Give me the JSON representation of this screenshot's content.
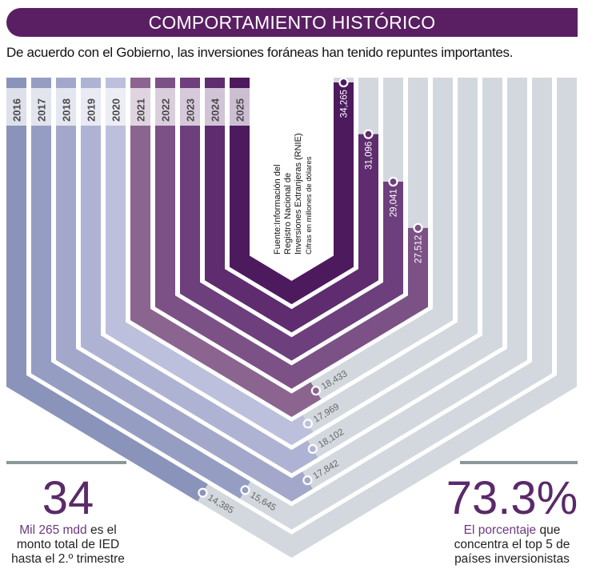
{
  "header": {
    "title": "COMPORTAMIENTO HISTÓRICO",
    "subtitle": "De acuerdo con el Gobierno, las inversiones foráneas han tenido repuntes importantes."
  },
  "source": {
    "lines": [
      "Fuente:Información del",
      "Registro Nacional de",
      "Inversiones Extranjeras (RNIE)"
    ],
    "units": "Cifras en millones de dólares"
  },
  "chart_data": {
    "type": "bar",
    "style": "nested chevron bands, fill length proportional to value",
    "categories": [
      "2016",
      "2017",
      "2018",
      "2019",
      "2020",
      "2021",
      "2022",
      "2023",
      "2024",
      "2025"
    ],
    "values": [
      14385,
      15645,
      17842,
      18102,
      17969,
      18433,
      27512,
      29041,
      31096,
      34265
    ],
    "value_labels": [
      "14,385",
      "15,645",
      "17,842",
      "18,102",
      "17,969",
      "18,433",
      "27,512",
      "29,041",
      "31,096",
      "34,265"
    ],
    "colors": [
      "#8a93b9",
      "#969dc3",
      "#a3a8cb",
      "#afb3d3",
      "#bcc0dc",
      "#8b6490",
      "#7c5186",
      "#6d3f7c",
      "#5e2c6f",
      "#4e1a5e"
    ],
    "track_color": "#d3d8de",
    "title": "",
    "xlabel": "",
    "ylabel": ""
  },
  "stats": {
    "left": {
      "big": "34",
      "highlight": "Mil 265 mdd",
      "rest1": " es el",
      "line2": "monto total de IED",
      "line3": "hasta el 2.º trimestre"
    },
    "right": {
      "big": "73.3%",
      "highlight": "El porcentaje",
      "rest1": " que",
      "line2": "concentra el top 5 de",
      "line3": "países inversionistas"
    }
  },
  "colors": {
    "brand": "#5a1f63",
    "accent_text": "#5a2a6a"
  }
}
